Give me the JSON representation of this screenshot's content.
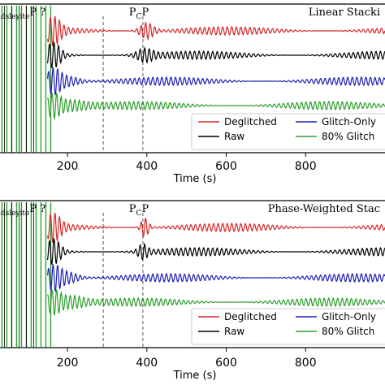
{
  "chart_data": [
    {
      "type": "line",
      "title": "Linear Stacki",
      "xlabel": "Time (s)",
      "ylabel": "",
      "xlim": [
        30,
        1000
      ],
      "xticks": [
        200,
        400,
        600,
        800
      ],
      "tick_labels": [
        "200",
        "400",
        "600",
        "800"
      ],
      "annotations": [
        {
          "main": "P",
          "sub": "Olivine-Wadsleyite",
          "tail": "P ?",
          "x": 160
        },
        {
          "main": "P",
          "sub": "C",
          "tail": "P",
          "x": 400
        }
      ],
      "vlines": [
        290,
        390
      ],
      "legend": {
        "placement": "lower-right",
        "entries": [
          "Deglitched",
          "Glitch-Only",
          "Raw",
          "80% Glitch"
        ]
      },
      "series": [
        {
          "name": "Deglitched",
          "color": "#d62728",
          "offset": 3,
          "features": [
            {
              "x": 400,
              "amp": 1.0,
              "width": 22
            }
          ]
        },
        {
          "name": "Raw",
          "color": "#000000",
          "offset": 2,
          "features": [
            {
              "x": 395,
              "amp": 0.7,
              "width": 25
            }
          ]
        },
        {
          "name": "Glitch-Only",
          "color": "#1f1fb4",
          "offset": 1,
          "features": [
            {
              "x": 200,
              "amp": 0.6,
              "width": 40
            }
          ]
        },
        {
          "name": "80% Glitch",
          "color": "#2ca02c",
          "offset": 0,
          "features": [
            {
              "x": 210,
              "amp": 0.6,
              "width": 45
            }
          ]
        }
      ]
    },
    {
      "type": "line",
      "title": "Phase-Weighted Stac",
      "xlabel": "Time (s)",
      "ylabel": "",
      "xlim": [
        30,
        1000
      ],
      "xticks": [
        200,
        400,
        600,
        800
      ],
      "tick_labels": [
        "200",
        "400",
        "600",
        "800"
      ],
      "annotations": [
        {
          "main": "P",
          "sub": "Olivine-Wadsleyite",
          "tail": "P ?",
          "x": 160
        },
        {
          "main": "P",
          "sub": "C",
          "tail": "P",
          "x": 400
        }
      ],
      "vlines": [
        290,
        390
      ],
      "legend": {
        "placement": "lower-right",
        "entries": [
          "Deglitched",
          "Glitch-Only",
          "Raw",
          "80% Glitch"
        ]
      },
      "series": [
        {
          "name": "Deglitched",
          "color": "#d62728",
          "offset": 3,
          "features": [
            {
              "x": 395,
              "amp": 1.2,
              "width": 12
            }
          ]
        },
        {
          "name": "Raw",
          "color": "#000000",
          "offset": 2,
          "features": [
            {
              "x": 390,
              "amp": 0.8,
              "width": 15
            }
          ]
        },
        {
          "name": "Glitch-Only",
          "color": "#1f1fb4",
          "offset": 1,
          "features": [
            {
              "x": 200,
              "amp": 0.7,
              "width": 35
            }
          ]
        },
        {
          "name": "80% Glitch",
          "color": "#2ca02c",
          "offset": 0,
          "features": [
            {
              "x": 210,
              "amp": 0.7,
              "width": 40
            }
          ]
        }
      ]
    }
  ]
}
